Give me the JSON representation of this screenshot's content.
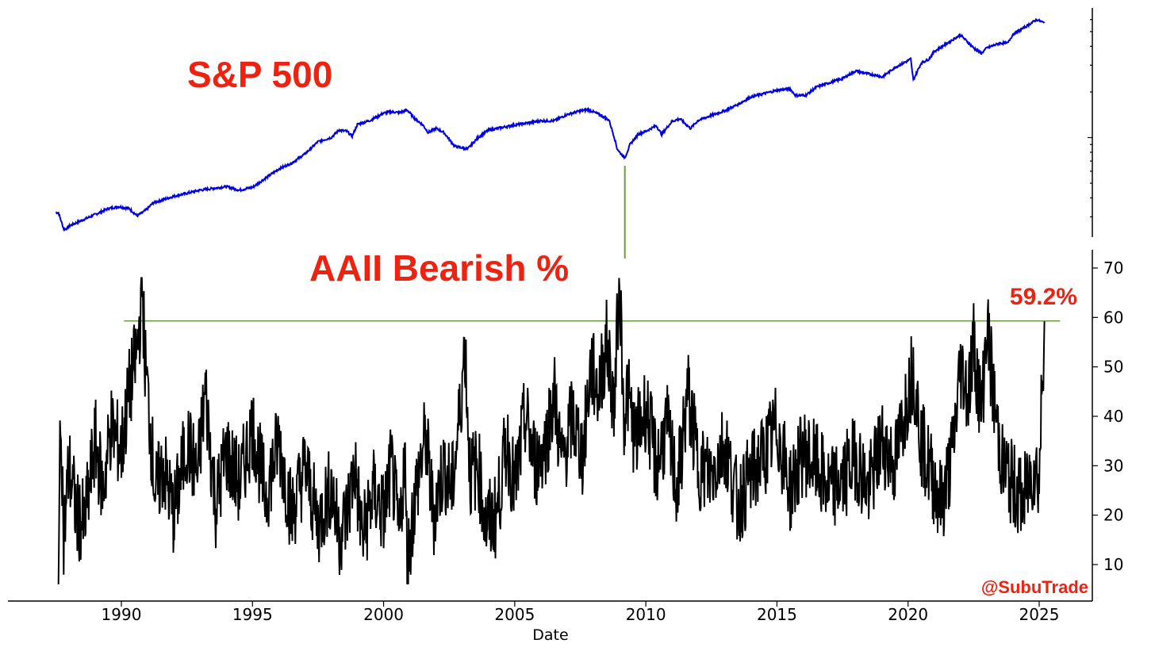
{
  "chart_data": [
    {
      "type": "line",
      "title": "S&P 500",
      "yscale": "log",
      "color": "#0000dd",
      "series": [
        {
          "x": [
            1987.5,
            1987.6,
            1987.8,
            1987.9,
            1988.0,
            1988.3,
            1988.8,
            1989.5,
            1989.9,
            1990.3,
            1990.6,
            1990.8,
            1991.0,
            1991.2,
            1992.0,
            1993.0,
            1994.0,
            1994.5,
            1995.0,
            1995.5,
            1996.0,
            1996.5,
            1997.0,
            1997.5,
            1998.0,
            1998.3,
            1998.6,
            1998.8,
            1999.0,
            1999.5,
            2000.0,
            2000.3,
            2000.6,
            2000.9,
            2001.2,
            2001.5,
            2001.7,
            2002.0,
            2002.3,
            2002.7,
            2002.8,
            2003.2,
            2003.6,
            2004.0,
            2005.0,
            2006.0,
            2006.5,
            2007.0,
            2007.5,
            2007.8,
            2008.3,
            2008.6,
            2008.8,
            2008.9,
            2009.0,
            2009.2,
            2009.4,
            2009.7,
            2010.0,
            2010.4,
            2010.6,
            2011.0,
            2011.3,
            2011.7,
            2012.0,
            2012.5,
            2013.0,
            2013.5,
            2014.0,
            2014.5,
            2015.0,
            2015.5,
            2015.7,
            2016.1,
            2016.5,
            2017.0,
            2017.5,
            2018.0,
            2018.4,
            2018.9,
            2019.0,
            2019.5,
            2019.9,
            2020.1,
            2020.2,
            2020.5,
            2020.8,
            2021.0,
            2021.5,
            2021.9,
            2022.0,
            2022.5,
            2022.8,
            2023.0,
            2023.5,
            2023.8,
            2024.0,
            2024.5,
            2024.9,
            2025.0,
            2025.2
          ],
          "y": [
            320,
            320,
            250,
            250,
            260,
            275,
            300,
            340,
            350,
            340,
            305,
            320,
            340,
            370,
            410,
            450,
            475,
            450,
            470,
            540,
            620,
            680,
            780,
            940,
            1000,
            1120,
            1100,
            1020,
            1220,
            1300,
            1450,
            1480,
            1460,
            1520,
            1330,
            1210,
            1080,
            1150,
            1080,
            880,
            870,
            840,
            1000,
            1120,
            1210,
            1290,
            1290,
            1420,
            1500,
            1530,
            1400,
            1300,
            1000,
            850,
            800,
            735,
            900,
            1050,
            1100,
            1200,
            1050,
            1280,
            1330,
            1150,
            1300,
            1400,
            1500,
            1650,
            1850,
            1950,
            2050,
            2100,
            1900,
            1900,
            2150,
            2300,
            2450,
            2750,
            2650,
            2550,
            2500,
            2900,
            3150,
            3300,
            2400,
            3100,
            3300,
            3700,
            4200,
            4650,
            4750,
            3900,
            3600,
            3900,
            4200,
            4200,
            4800,
            5400,
            6000,
            5900,
            5700
          ]
        }
      ]
    },
    {
      "type": "line",
      "title": "AAII Bearish %",
      "xlabel": "Date",
      "ylim": [
        3,
        74
      ],
      "yticks": [
        10,
        20,
        30,
        40,
        50,
        60,
        70
      ],
      "xlim": [
        1987.0,
        2026.0
      ],
      "xticks": [
        1990,
        1995,
        2000,
        2005,
        2010,
        2015,
        2020,
        2025
      ],
      "color": "#000000",
      "reference_line": 59.3,
      "reference_color": "#6a9e3a",
      "annotation": "59.2%",
      "annotation_color": "#ee2211",
      "series": [
        {
          "x": [
            1987.6,
            1987.7,
            1987.8,
            1988.0,
            1988.3,
            1988.6,
            1989.0,
            1989.3,
            1989.6,
            1990.0,
            1990.3,
            1990.6,
            1990.7,
            1990.8,
            1990.9,
            1991.0,
            1991.3,
            1991.6,
            1992.0,
            1992.5,
            1992.9,
            1993.2,
            1993.6,
            1994.0,
            1994.5,
            1995.0,
            1995.5,
            1996.0,
            1996.5,
            1997.0,
            1997.5,
            1998.0,
            1998.3,
            1998.6,
            1998.9,
            1999.2,
            1999.6,
            2000.0,
            2000.3,
            2000.6,
            2000.8,
            2000.9,
            2001.2,
            2001.6,
            2001.9,
            2002.3,
            2002.6,
            2002.9,
            2003.1,
            2003.3,
            2003.6,
            2003.9,
            2004.3,
            2004.7,
            2005.0,
            2005.4,
            2005.8,
            2006.2,
            2006.5,
            2006.8,
            2007.2,
            2007.6,
            2007.9,
            2008.2,
            2008.5,
            2008.8,
            2009.0,
            2009.15,
            2009.3,
            2009.6,
            2010.0,
            2010.4,
            2010.8,
            2011.2,
            2011.6,
            2012.0,
            2012.5,
            2013.0,
            2013.5,
            2014.0,
            2014.5,
            2015.0,
            2015.5,
            2016.0,
            2016.5,
            2017.0,
            2017.5,
            2018.0,
            2018.5,
            2019.0,
            2019.5,
            2020.0,
            2020.2,
            2020.5,
            2020.9,
            2021.3,
            2021.7,
            2022.0,
            2022.3,
            2022.5,
            2022.8,
            2023.0,
            2023.3,
            2023.6,
            2024.0,
            2024.4,
            2024.8,
            2025.0,
            2025.1,
            2025.2
          ],
          "y": [
            14,
            41,
            15,
            30,
            20,
            18,
            35,
            25,
            38,
            33,
            45,
            53,
            59,
            67,
            51,
            45,
            24,
            30,
            20,
            35,
            28,
            45,
            22,
            33,
            26,
            38,
            24,
            35,
            20,
            30,
            18,
            26,
            16,
            20,
            30,
            15,
            25,
            20,
            30,
            15,
            33,
            10,
            24,
            36,
            20,
            30,
            25,
            40,
            55,
            28,
            30,
            18,
            20,
            35,
            25,
            40,
            30,
            35,
            45,
            30,
            40,
            32,
            50,
            45,
            55,
            42,
            70,
            40,
            45,
            35,
            42,
            30,
            38,
            25,
            45,
            30,
            28,
            35,
            22,
            28,
            32,
            38,
            25,
            33,
            30,
            25,
            27,
            32,
            25,
            35,
            30,
            45,
            50,
            35,
            28,
            22,
            33,
            50,
            45,
            55,
            40,
            59,
            42,
            30,
            26,
            23,
            30,
            27,
            45,
            59.2
          ]
        }
      ]
    }
  ],
  "watermark": "@SubuTrade"
}
